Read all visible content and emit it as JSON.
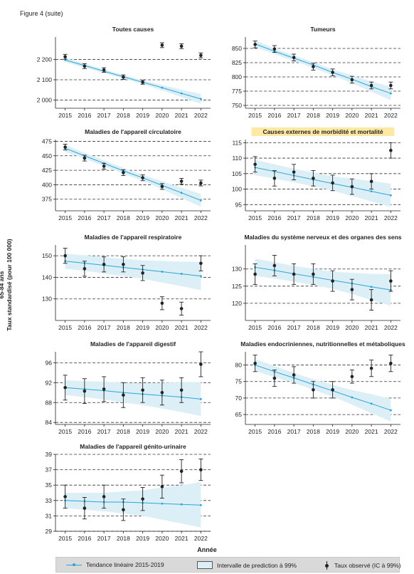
{
  "figure_label": "Figure 4 (suite)",
  "y_axis_label_line1": "65-84 ans",
  "y_axis_label_line2": "Taux standardisé (pour 100 000)",
  "x_axis_label": "Année",
  "legend": {
    "trend": "Tendance linéaire 2015-2019",
    "band": "Intervalle de prediction à 99%",
    "observed": "Taux observé (IC à 99%)"
  },
  "colors": {
    "trend": "#2aa6d6",
    "band": "#dceff7",
    "observed": "#222222",
    "highlight": "#fde9a3"
  },
  "chart_data": [
    {
      "type": "line",
      "title": "Toutes causes",
      "x": [
        2015,
        2016,
        2017,
        2018,
        2019,
        2020,
        2021,
        2022
      ],
      "ylim": [
        1960,
        2310
      ],
      "yticks": [
        2000,
        2100,
        2200
      ],
      "ytick_labels": [
        "2 000",
        "2 100",
        "2 200"
      ],
      "observed": [
        2213,
        2167,
        2148,
        2113,
        2088,
        2270,
        2265,
        2220
      ],
      "ci_low": [
        2201,
        2155,
        2137,
        2102,
        2078,
        2258,
        2253,
        2208
      ],
      "ci_high": [
        2225,
        2179,
        2159,
        2124,
        2098,
        2282,
        2277,
        2232
      ],
      "trend": [
        2197,
        2170,
        2142,
        2115,
        2088,
        2061,
        2033,
        2006
      ],
      "pi_low": [
        2186,
        2160,
        2133,
        2106,
        2079,
        2048,
        2015,
        1982
      ],
      "pi_high": [
        2208,
        2180,
        2151,
        2124,
        2097,
        2074,
        2051,
        2030
      ]
    },
    {
      "type": "line",
      "title": "Tumeurs",
      "x": [
        2015,
        2016,
        2017,
        2018,
        2019,
        2020,
        2021,
        2022
      ],
      "ylim": [
        745,
        870
      ],
      "yticks": [
        750,
        775,
        800,
        825,
        850
      ],
      "ytick_labels": [
        "750",
        "775",
        "800",
        "825",
        "850"
      ],
      "observed": [
        857,
        849,
        834,
        818,
        808,
        795,
        785,
        785
      ],
      "ci_low": [
        851,
        843,
        828,
        812,
        802,
        789,
        779,
        779
      ],
      "ci_high": [
        863,
        855,
        840,
        824,
        814,
        801,
        791,
        791
      ],
      "trend": [
        858,
        845,
        833,
        821,
        808,
        796,
        783,
        771
      ],
      "pi_low": [
        852,
        840,
        828,
        816,
        803,
        789,
        774,
        759
      ],
      "pi_high": [
        864,
        850,
        838,
        826,
        813,
        803,
        792,
        783
      ]
    },
    {
      "type": "line",
      "title": "Maladies de l'appareil circulatoire",
      "x": [
        2015,
        2016,
        2017,
        2018,
        2019,
        2020,
        2021,
        2022
      ],
      "ylim": [
        355,
        478
      ],
      "yticks": [
        375,
        400,
        425,
        450,
        475
      ],
      "ytick_labels": [
        "375",
        "400",
        "425",
        "450",
        "475"
      ],
      "observed": [
        465,
        446,
        432,
        421,
        412,
        397,
        406,
        403
      ],
      "ci_low": [
        460,
        441,
        427,
        416,
        407,
        392,
        401,
        398
      ],
      "ci_high": [
        470,
        451,
        437,
        426,
        417,
        402,
        411,
        408
      ],
      "trend": [
        463,
        450,
        437,
        424,
        412,
        399,
        386,
        373
      ],
      "pi_low": [
        457,
        445,
        432,
        419,
        407,
        392,
        377,
        362
      ],
      "pi_high": [
        469,
        455,
        442,
        429,
        417,
        406,
        395,
        384
      ]
    },
    {
      "type": "line",
      "title": "Causes externes de morbidité et mortalité",
      "highlighted": true,
      "x": [
        2015,
        2016,
        2017,
        2018,
        2019,
        2020,
        2021,
        2022
      ],
      "ylim": [
        93,
        116
      ],
      "yticks": [
        95,
        100,
        105,
        110,
        115
      ],
      "ytick_labels": [
        "95",
        "100",
        "105",
        "110",
        "115"
      ],
      "observed": [
        108.0,
        103.5,
        105.5,
        103.5,
        102.0,
        100.8,
        102.5,
        112.5
      ],
      "ci_low": [
        105.5,
        101.0,
        103.0,
        101.0,
        99.5,
        98.3,
        100.0,
        110.0
      ],
      "ci_high": [
        110.5,
        106.0,
        108.0,
        106.0,
        104.5,
        103.3,
        105.0,
        115.0
      ],
      "trend": [
        107.0,
        105.7,
        104.4,
        103.1,
        101.8,
        100.6,
        99.3,
        98.0
      ],
      "pi_low": [
        104.5,
        103.4,
        102.2,
        100.9,
        99.5,
        97.8,
        96.0,
        94.2
      ],
      "pi_high": [
        109.5,
        108.0,
        106.6,
        105.3,
        104.1,
        103.4,
        102.6,
        101.8
      ]
    },
    {
      "type": "line",
      "title": "Maladies de l'appareil respiratoire",
      "x": [
        2015,
        2016,
        2017,
        2018,
        2019,
        2020,
        2021,
        2022
      ],
      "ylim": [
        120,
        155
      ],
      "yticks": [
        130,
        140,
        150
      ],
      "ytick_labels": [
        "130",
        "140",
        "150"
      ],
      "observed": [
        150.0,
        144.0,
        146.0,
        146.0,
        142.0,
        128.0,
        125.5,
        146.5
      ],
      "ci_low": [
        146.5,
        140.5,
        142.5,
        142.5,
        138.5,
        125.0,
        122.5,
        143.0
      ],
      "ci_high": [
        153.5,
        147.5,
        149.5,
        149.5,
        145.5,
        131.0,
        128.5,
        150.0
      ],
      "trend": [
        147.5,
        146.6,
        145.6,
        144.6,
        143.6,
        142.6,
        141.6,
        140.6
      ],
      "pi_low": [
        144.0,
        143.0,
        141.8,
        140.6,
        139.3,
        137.6,
        135.9,
        134.0
      ],
      "pi_high": [
        151.0,
        150.2,
        149.4,
        148.6,
        147.9,
        147.6,
        147.3,
        147.2
      ]
    },
    {
      "type": "line",
      "title": "Maladies du système nerveux et des organes des sens",
      "x": [
        2015,
        2016,
        2017,
        2018,
        2019,
        2020,
        2021,
        2022
      ],
      "ylim": [
        115,
        137
      ],
      "yticks": [
        120,
        125,
        130
      ],
      "ytick_labels": [
        "120",
        "125",
        "130"
      ],
      "observed": [
        128.5,
        131.0,
        128.5,
        128.5,
        126.5,
        124.0,
        121.0,
        126.5
      ],
      "ci_low": [
        125.5,
        128.0,
        125.5,
        125.5,
        123.5,
        121.0,
        118.0,
        123.5
      ],
      "ci_high": [
        131.5,
        134.0,
        131.5,
        131.5,
        129.5,
        127.0,
        124.0,
        129.5
      ],
      "trend": [
        130.5,
        129.6,
        128.6,
        127.7,
        126.7,
        125.8,
        124.8,
        123.9
      ],
      "pi_low": [
        128.0,
        127.2,
        126.3,
        125.3,
        124.2,
        122.7,
        121.0,
        119.3
      ],
      "pi_high": [
        133.0,
        132.0,
        130.9,
        130.1,
        129.2,
        128.9,
        128.6,
        128.5
      ]
    },
    {
      "type": "line",
      "title": "Maladies de l'appareil digestif",
      "x": [
        2015,
        2016,
        2017,
        2018,
        2019,
        2020,
        2021,
        2022
      ],
      "ylim": [
        83.6,
        98.2
      ],
      "yticks": [
        84,
        88,
        92,
        96
      ],
      "ytick_labels": [
        "84",
        "88",
        "92",
        "96"
      ],
      "observed": [
        91.0,
        90.3,
        90.7,
        89.5,
        90.5,
        90.0,
        90.5,
        95.7
      ],
      "ci_low": [
        88.5,
        87.8,
        88.2,
        87.0,
        88.0,
        87.5,
        88.0,
        93.2
      ],
      "ci_high": [
        93.5,
        92.8,
        93.2,
        92.0,
        93.0,
        92.5,
        93.0,
        98.2
      ],
      "trend": [
        91.0,
        90.7,
        90.4,
        90.0,
        89.7,
        89.4,
        89.1,
        88.7
      ],
      "pi_low": [
        89.5,
        89.1,
        88.6,
        88.0,
        87.5,
        86.8,
        86.1,
        85.3
      ],
      "pi_high": [
        92.5,
        92.3,
        92.2,
        92.0,
        91.9,
        92.0,
        92.1,
        92.1
      ]
    },
    {
      "type": "line",
      "title": "Maladies endocriniennes, nutritionnelles et métaboliques",
      "x": [
        2015,
        2016,
        2017,
        2018,
        2019,
        2020,
        2021,
        2022
      ],
      "ylim": [
        62,
        84
      ],
      "yticks": [
        65,
        70,
        75,
        80
      ],
      "ytick_labels": [
        "65",
        "70",
        "75",
        "80"
      ],
      "observed": [
        80.5,
        76.0,
        77.0,
        72.5,
        72.5,
        76.5,
        79.0,
        80.5
      ],
      "ci_low": [
        78.0,
        73.5,
        74.5,
        70.0,
        70.0,
        74.5,
        76.5,
        78.0
      ],
      "ci_high": [
        83.0,
        78.5,
        79.5,
        75.0,
        75.0,
        78.5,
        81.5,
        83.0
      ],
      "trend": [
        80.0,
        78.0,
        76.1,
        74.1,
        72.2,
        70.2,
        68.3,
        66.3
      ],
      "pi_low": [
        78.2,
        76.3,
        74.6,
        72.5,
        70.4,
        68.0,
        65.4,
        62.9
      ],
      "pi_high": [
        81.8,
        79.7,
        77.6,
        75.7,
        74.0,
        72.4,
        71.2,
        69.7
      ]
    },
    {
      "type": "line",
      "title": "Maladies de l'appareil génito-urinaire",
      "x": [
        2015,
        2016,
        2017,
        2018,
        2019,
        2020,
        2021,
        2022
      ],
      "ylim": [
        29,
        39
      ],
      "yticks": [
        29,
        31,
        33,
        35,
        37,
        39
      ],
      "ytick_labels": [
        "29",
        "31",
        "33",
        "35",
        "37",
        "39"
      ],
      "observed": [
        33.5,
        32.0,
        33.5,
        31.8,
        33.2,
        34.8,
        36.8,
        37.0
      ],
      "ci_low": [
        32.0,
        30.6,
        32.0,
        30.4,
        31.7,
        33.3,
        35.3,
        35.6
      ],
      "ci_high": [
        35.0,
        33.4,
        35.0,
        33.2,
        34.7,
        36.3,
        38.3,
        38.4
      ],
      "trend": [
        33.0,
        32.9,
        32.8,
        32.8,
        32.7,
        32.6,
        32.5,
        32.4
      ],
      "pi_low": [
        32.0,
        31.8,
        31.6,
        31.3,
        31.0,
        30.5,
        30.0,
        29.5
      ],
      "pi_high": [
        34.0,
        34.0,
        34.0,
        34.2,
        34.3,
        34.7,
        35.0,
        35.4
      ]
    }
  ]
}
